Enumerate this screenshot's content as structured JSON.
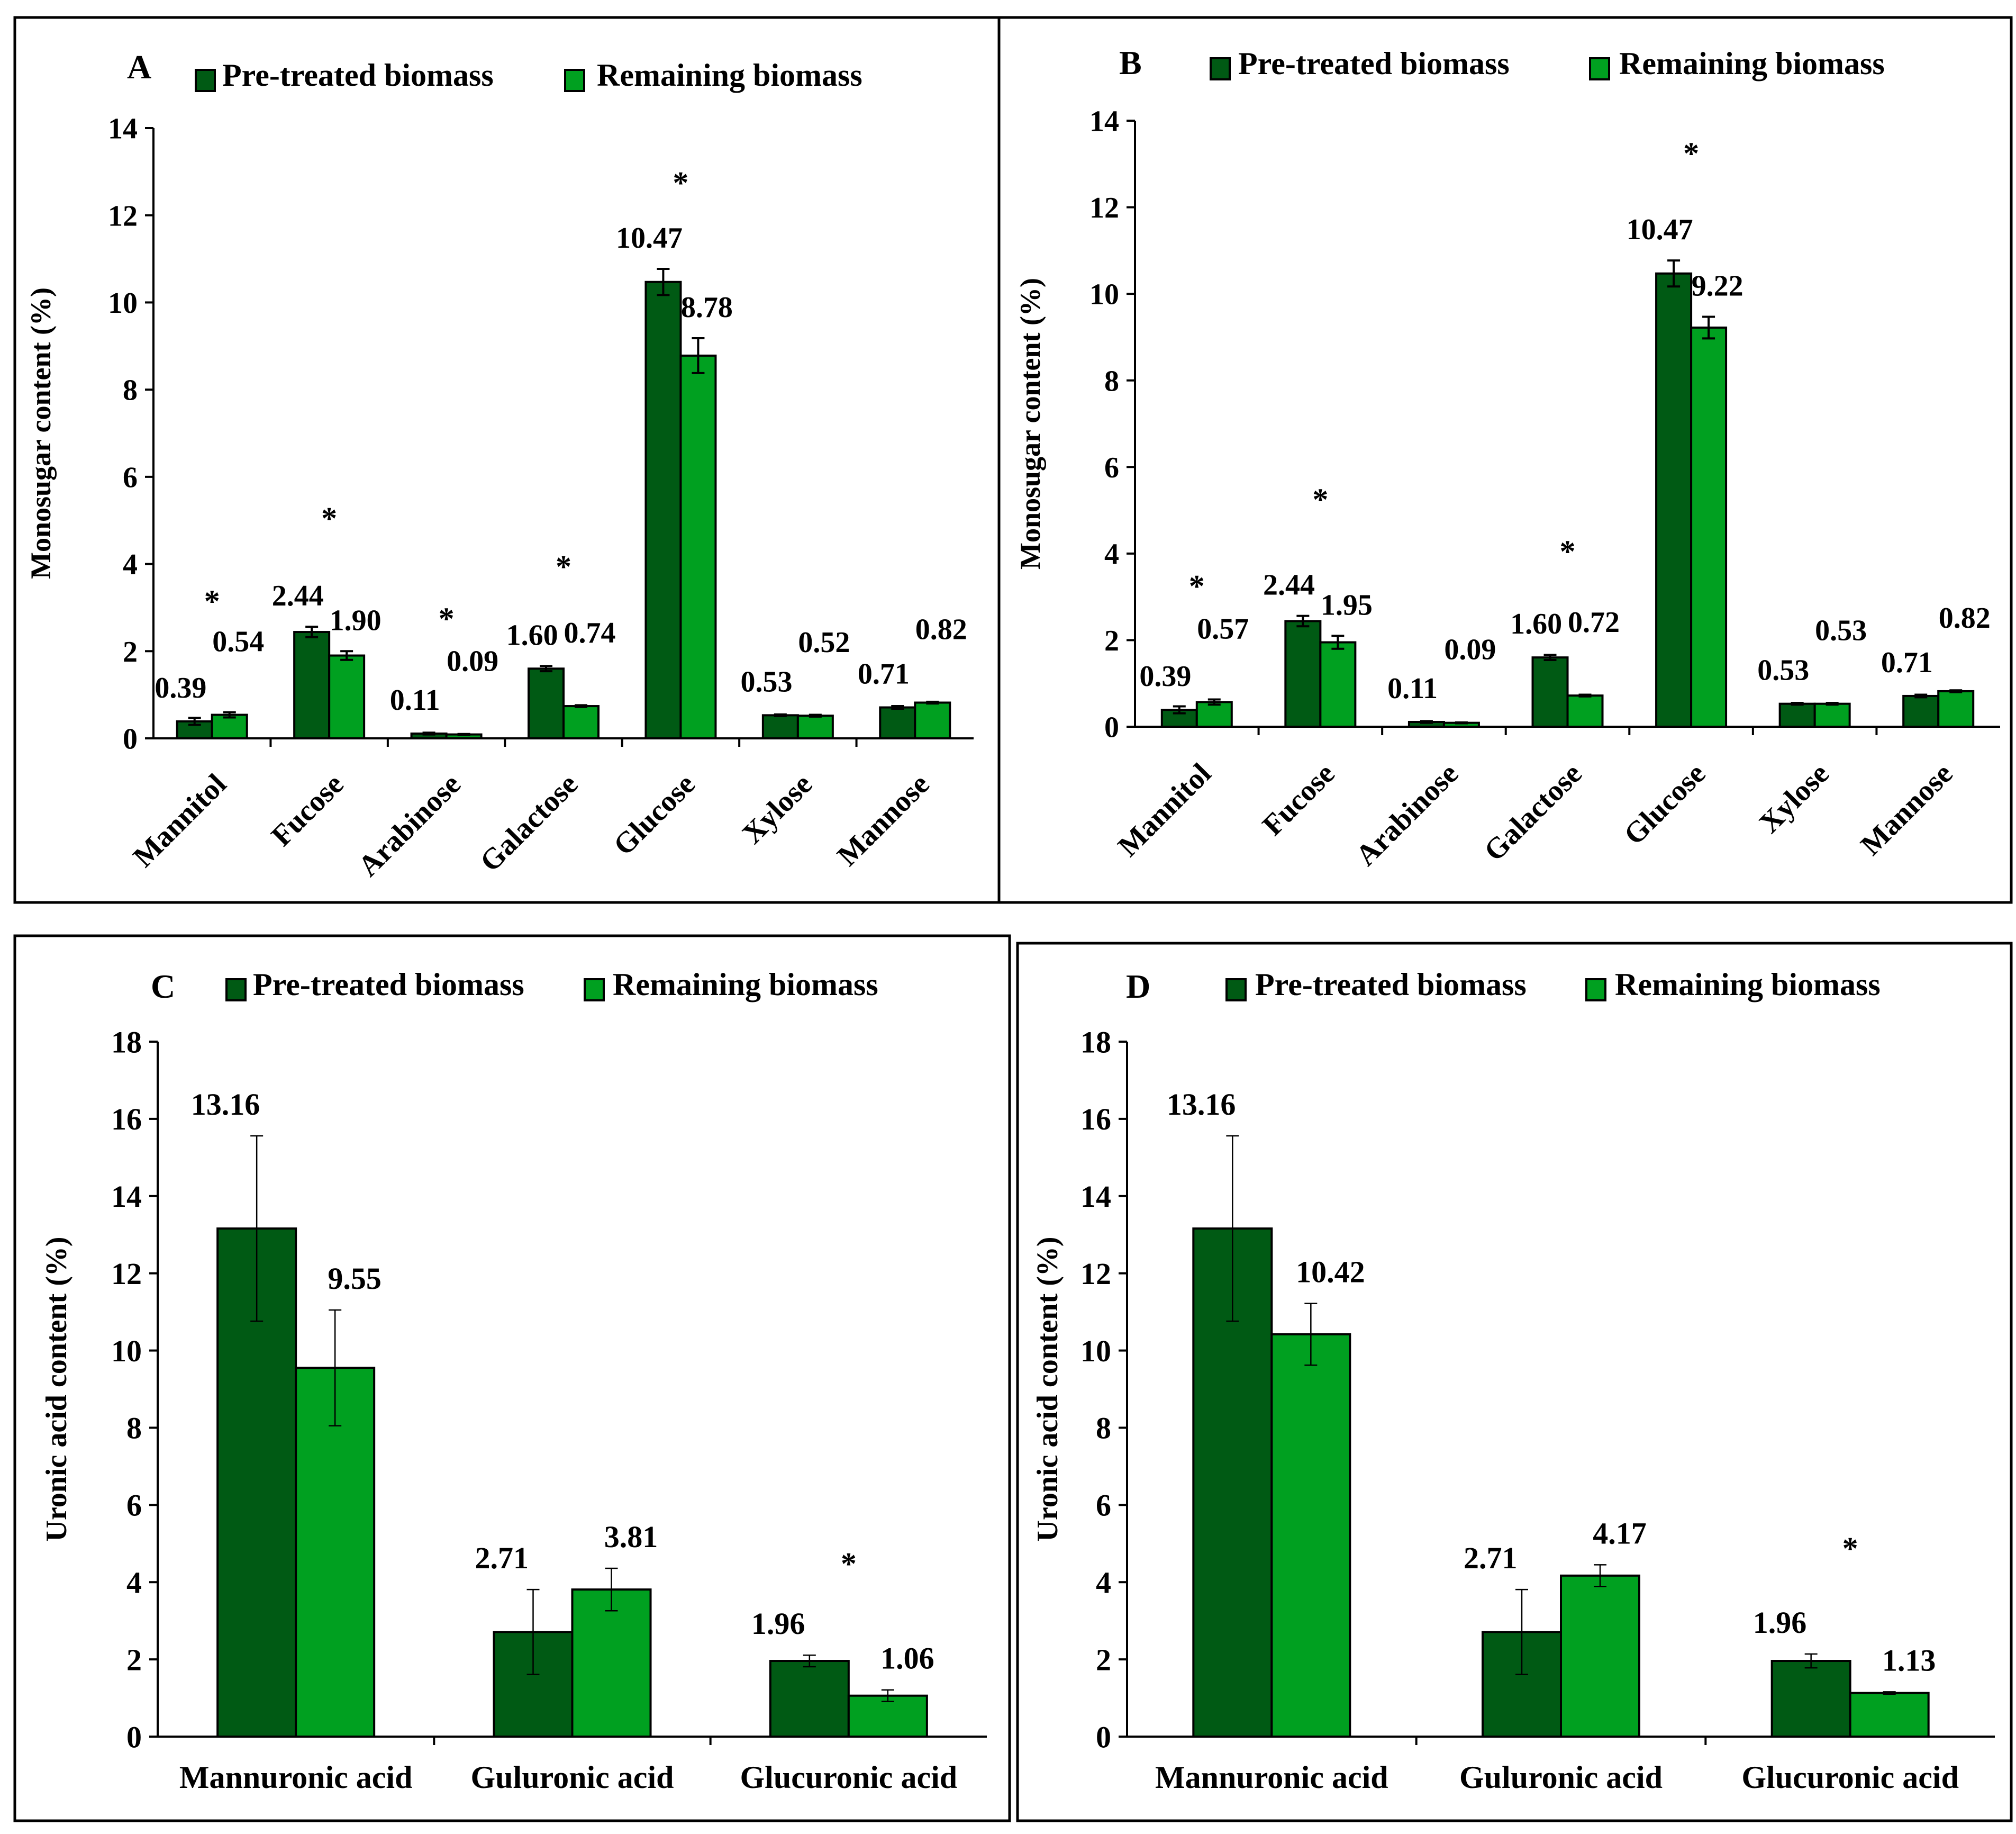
{
  "colors": {
    "pretreated": "#005A14",
    "remaining": "#00A020"
  },
  "chart_data": [
    {
      "panel": "A",
      "type": "bar",
      "legend": [
        "Pre-treated biomass",
        "Remaining biomass"
      ],
      "ylabel": "Monosugar content  (%)",
      "ylim": [
        0,
        14
      ],
      "yticks": [
        "0",
        "2",
        "4",
        "6",
        "8",
        "10",
        "12",
        "14"
      ],
      "categories": [
        "Mannitol",
        "Fucose",
        "Arabinose",
        "Galactose",
        "Glucose",
        "Xylose",
        "Mannose"
      ],
      "series": [
        {
          "name": "Pre-treated biomass",
          "values": [
            0.39,
            2.44,
            0.11,
            1.6,
            10.47,
            0.53,
            0.71
          ],
          "errors": [
            0.08,
            0.12,
            0.02,
            0.06,
            0.3,
            0.02,
            0.03
          ],
          "labels": [
            "0.39",
            "2.44",
            "0.11",
            "1.60",
            "10.47",
            "0.53",
            "0.71"
          ]
        },
        {
          "name": "Remaining biomass",
          "values": [
            0.54,
            1.9,
            0.09,
            0.74,
            8.78,
            0.52,
            0.82
          ],
          "errors": [
            0.06,
            0.1,
            0.01,
            0.02,
            0.4,
            0.02,
            0.02
          ],
          "labels": [
            "0.54",
            "1.90",
            "0.09",
            "0.74",
            "8.78",
            "0.52",
            "0.82"
          ]
        }
      ],
      "significance": [
        "*",
        "*",
        "*",
        "*",
        "*",
        "",
        ""
      ],
      "significance_y": [
        2.9,
        4.8,
        2.5,
        3.7,
        12.5,
        0,
        0
      ]
    },
    {
      "panel": "B",
      "type": "bar",
      "legend": [
        "Pre-treated biomass",
        "Remaining biomass"
      ],
      "ylabel": "Monosugar content (%)",
      "ylim": [
        0,
        14
      ],
      "yticks": [
        "0",
        "2",
        "4",
        "6",
        "8",
        "10",
        "12",
        "14"
      ],
      "categories": [
        "Mannitol",
        "Fucose",
        "Arabinose",
        "Galactose",
        "Glucose",
        "Xylose",
        "Mannose"
      ],
      "series": [
        {
          "name": "Pre-treated biomass",
          "values": [
            0.39,
            2.44,
            0.11,
            1.6,
            10.47,
            0.53,
            0.71
          ],
          "errors": [
            0.08,
            0.12,
            0.02,
            0.06,
            0.3,
            0.02,
            0.03
          ],
          "labels": [
            "0.39",
            "2.44",
            "0.11",
            "1.60",
            "10.47",
            "0.53",
            "0.71"
          ]
        },
        {
          "name": "Remaining biomass",
          "values": [
            0.57,
            1.95,
            0.09,
            0.72,
            9.22,
            0.53,
            0.82
          ],
          "errors": [
            0.06,
            0.15,
            0.01,
            0.02,
            0.25,
            0.02,
            0.02
          ],
          "labels": [
            "0.57",
            "1.95",
            "0.09",
            "0.72",
            "9.22",
            "0.53",
            "0.82"
          ]
        }
      ],
      "significance": [
        "*",
        "*",
        "",
        "*",
        "*",
        "",
        ""
      ],
      "significance_y": [
        3.0,
        5.0,
        0,
        3.8,
        13.0,
        0,
        0
      ]
    },
    {
      "panel": "C",
      "type": "bar",
      "legend": [
        "Pre-treated biomass",
        "Remaining biomass"
      ],
      "ylabel": "Uronic acid content (%)",
      "ylim": [
        0,
        18
      ],
      "yticks": [
        "0",
        "2",
        "4",
        "6",
        "8",
        "10",
        "12",
        "14",
        "16",
        "18"
      ],
      "categories": [
        "Mannuronic acid",
        "Guluronic acid",
        "Glucuronic acid"
      ],
      "series": [
        {
          "name": "Pre-treated biomass",
          "values": [
            13.16,
            2.71,
            1.96
          ],
          "errors": [
            2.4,
            1.1,
            0.15
          ],
          "labels": [
            "13.16",
            "2.71",
            "1.96"
          ]
        },
        {
          "name": "Remaining biomass",
          "values": [
            9.55,
            3.81,
            1.06
          ],
          "errors": [
            1.5,
            0.55,
            0.15
          ],
          "labels": [
            "9.55",
            "3.81",
            "1.06"
          ]
        }
      ],
      "significance": [
        "",
        "",
        "*"
      ],
      "significance_y": [
        0,
        0,
        4.2
      ]
    },
    {
      "panel": "D",
      "type": "bar",
      "legend": [
        "Pre-treated biomass",
        "Remaining biomass"
      ],
      "ylabel": "Uronic acid content (%)",
      "ylim": [
        0,
        18
      ],
      "yticks": [
        "0",
        "2",
        "4",
        "6",
        "8",
        "10",
        "12",
        "14",
        "16",
        "18"
      ],
      "categories": [
        "Mannuronic acid",
        "Guluronic acid",
        "Glucuronic acid"
      ],
      "series": [
        {
          "name": "Pre-treated biomass",
          "values": [
            13.16,
            2.71,
            1.96
          ],
          "errors": [
            2.4,
            1.1,
            0.18
          ],
          "labels": [
            "13.16",
            "2.71",
            "1.96"
          ]
        },
        {
          "name": "Remaining biomass",
          "values": [
            10.42,
            4.17,
            1.13
          ],
          "errors": [
            0.8,
            0.28,
            0.03
          ],
          "labels": [
            "10.42",
            "4.17",
            "1.13"
          ]
        }
      ],
      "significance": [
        "",
        "",
        "*"
      ],
      "significance_y": [
        0,
        0,
        4.6
      ]
    }
  ]
}
